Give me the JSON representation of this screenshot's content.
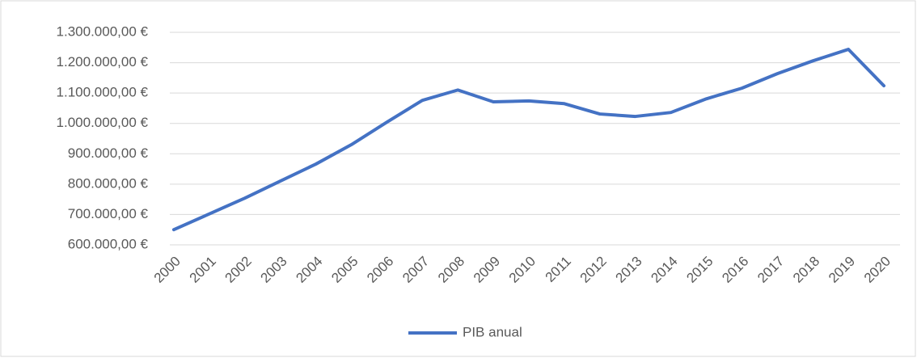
{
  "chart_data": {
    "type": "line",
    "categories": [
      "2000",
      "2001",
      "2002",
      "2003",
      "2004",
      "2005",
      "2006",
      "2007",
      "2008",
      "2009",
      "2010",
      "2011",
      "2012",
      "2013",
      "2014",
      "2015",
      "2016",
      "2017",
      "2018",
      "2019",
      "2020"
    ],
    "series": [
      {
        "name": "PIB anual",
        "color": "#4472c4",
        "values": [
          650000,
          702000,
          754000,
          810000,
          866000,
          930000,
          1004000,
          1076000,
          1110000,
          1071000,
          1074000,
          1065000,
          1031000,
          1023000,
          1036000,
          1081000,
          1116000,
          1164000,
          1206000,
          1244000,
          1124000
        ]
      }
    ],
    "ylim": [
      600000,
      1300000
    ],
    "yticks": [
      {
        "value": 600000,
        "label": "600.000,00 €"
      },
      {
        "value": 700000,
        "label": "700.000,00 €"
      },
      {
        "value": 800000,
        "label": "800.000,00 €"
      },
      {
        "value": 900000,
        "label": "900.000,00 €"
      },
      {
        "value": 1000000,
        "label": "1.000.000,00 €"
      },
      {
        "value": 1100000,
        "label": "1.100.000,00 €"
      },
      {
        "value": 1200000,
        "label": "1.200.000,00 €"
      },
      {
        "value": 1300000,
        "label": "1.300.000,00 €"
      }
    ],
    "grid": true,
    "legend": "bottom"
  }
}
